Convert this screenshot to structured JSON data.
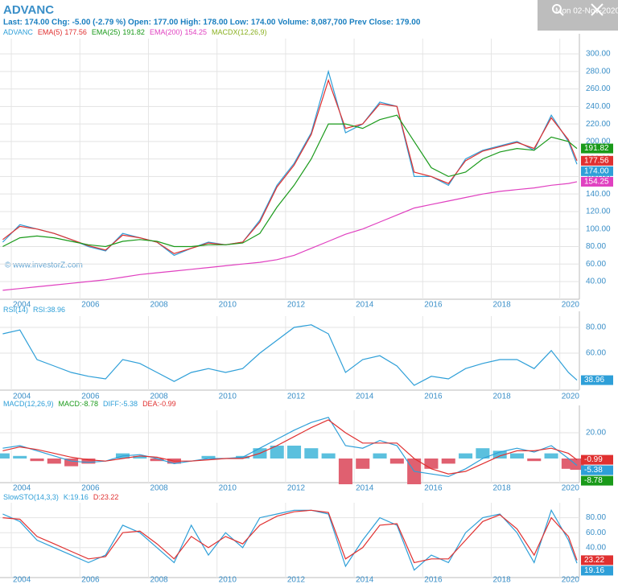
{
  "header": {
    "symbol": "ADVANC",
    "quote": "Last: 174.00 Chg: -5.00 (-2.79 %) Open: 177.00 High: 178.00 Low: 174.00 Volume: 8,087,700 Prev Close: 179.00",
    "date": "Mon 02-Nov-2020",
    "watermark": "© www.investorZ.com"
  },
  "chart_data": [
    {
      "type": "line",
      "indicator": "MACDX(12,26,9)",
      "x": [
        2003.75,
        2004.25,
        2004.75,
        2005.25,
        2005.75,
        2006.25,
        2006.75,
        2007.25,
        2007.75,
        2008.25,
        2008.75,
        2009.25,
        2009.75,
        2010.25,
        2010.75,
        2011.25,
        2011.75,
        2012.25,
        2012.75,
        2013.25,
        2013.75,
        2014.25,
        2014.75,
        2015.25,
        2015.75,
        2016.25,
        2016.75,
        2017.25,
        2017.75,
        2018.25,
        2018.75,
        2019.25,
        2019.75,
        2020.25,
        2020.5
      ],
      "series": [
        {
          "name": "ADVANC",
          "color": "#2e9fd8",
          "box": "174.00",
          "values": [
            85,
            105,
            100,
            95,
            88,
            80,
            75,
            95,
            90,
            85,
            70,
            78,
            85,
            82,
            85,
            110,
            150,
            175,
            210,
            280,
            210,
            220,
            245,
            240,
            160,
            160,
            150,
            180,
            190,
            195,
            200,
            190,
            230,
            200,
            174
          ]
        },
        {
          "name": "EMA(5)",
          "color": "#e03030",
          "last": "177.56",
          "values": [
            88,
            103,
            100,
            95,
            88,
            81,
            76,
            93,
            90,
            85,
            72,
            78,
            84,
            82,
            85,
            108,
            148,
            173,
            208,
            270,
            215,
            220,
            243,
            240,
            165,
            160,
            152,
            178,
            189,
            194,
            199,
            192,
            227,
            202,
            178
          ]
        },
        {
          "name": "EMA(25)",
          "color": "#1a9a1a",
          "last": "191.82",
          "values": [
            80,
            90,
            92,
            90,
            86,
            82,
            80,
            86,
            88,
            86,
            80,
            80,
            82,
            82,
            84,
            95,
            125,
            150,
            180,
            220,
            220,
            215,
            225,
            230,
            200,
            170,
            160,
            165,
            180,
            188,
            192,
            190,
            205,
            200,
            192
          ]
        },
        {
          "name": "EMA(200)",
          "color": "#e040c0",
          "last": "154.25",
          "values": [
            30,
            32,
            34,
            36,
            38,
            40,
            42,
            45,
            48,
            50,
            52,
            54,
            56,
            58,
            60,
            62,
            65,
            70,
            78,
            86,
            94,
            100,
            108,
            116,
            124,
            128,
            132,
            136,
            140,
            143,
            145,
            147,
            150,
            152,
            154
          ]
        }
      ],
      "xlim": [
        2003.67,
        2020.57
      ],
      "xticks": [
        2004,
        2006,
        2008,
        2010,
        2012,
        2014,
        2016,
        2018,
        2020
      ],
      "ylim": [
        19.8,
        317.5
      ],
      "yticks": [
        {
          "value": 40,
          "label": "40.00"
        },
        {
          "value": 60,
          "label": "60.00"
        },
        {
          "value": 80,
          "label": "80.00"
        },
        {
          "value": 100,
          "label": "100.00"
        },
        {
          "value": 120,
          "label": "120.00"
        },
        {
          "value": 140,
          "label": "140.00"
        },
        {
          "value": 160,
          "label": "160.00"
        },
        {
          "value": 180,
          "label": "180.00"
        },
        {
          "value": 200,
          "label": "200.00"
        },
        {
          "value": 220,
          "label": "220.00"
        },
        {
          "value": 240,
          "label": "240.00"
        },
        {
          "value": 260,
          "label": "260.00"
        },
        {
          "value": 280,
          "label": "280.00"
        },
        {
          "value": 300,
          "label": "300.00"
        }
      ],
      "grid": true
    },
    {
      "type": "line",
      "title": "RSI(14)",
      "x": [
        2003.75,
        2004.25,
        2004.75,
        2005.25,
        2005.75,
        2006.25,
        2006.75,
        2007.25,
        2007.75,
        2008.25,
        2008.75,
        2009.25,
        2009.75,
        2010.25,
        2010.75,
        2011.25,
        2011.75,
        2012.25,
        2012.75,
        2013.25,
        2013.75,
        2014.25,
        2014.75,
        2015.25,
        2015.75,
        2016.25,
        2016.75,
        2017.25,
        2017.75,
        2018.25,
        2018.75,
        2019.25,
        2019.75,
        2020.25,
        2020.5
      ],
      "series": [
        {
          "name": "RSI",
          "legend": "RSI:38.96",
          "box": "38.96",
          "color": "#2e9fd8",
          "values": [
            75,
            78,
            55,
            50,
            45,
            42,
            40,
            55,
            52,
            45,
            38,
            45,
            48,
            45,
            48,
            60,
            70,
            80,
            82,
            75,
            45,
            55,
            58,
            50,
            35,
            42,
            40,
            48,
            52,
            55,
            55,
            48,
            62,
            45,
            39
          ]
        }
      ],
      "xlim": [
        2003.67,
        2020.57
      ],
      "xticks": [
        2004,
        2006,
        2008,
        2010,
        2012,
        2014,
        2016,
        2018,
        2020
      ],
      "ylim": [
        31.25,
        88.75
      ],
      "yticks": [
        {
          "value": 60,
          "label": "60.00"
        },
        {
          "value": 80,
          "label": "80.00"
        }
      ],
      "grid": true
    },
    {
      "type": "line",
      "title": "MACD(12,26,9)",
      "x": [
        2003.75,
        2004.25,
        2004.75,
        2005.25,
        2005.75,
        2006.25,
        2006.75,
        2007.25,
        2007.75,
        2008.25,
        2008.75,
        2009.25,
        2009.75,
        2010.25,
        2010.75,
        2011.25,
        2011.75,
        2012.25,
        2012.75,
        2013.25,
        2013.75,
        2014.25,
        2014.75,
        2015.25,
        2015.75,
        2016.25,
        2016.75,
        2017.25,
        2017.75,
        2018.25,
        2018.75,
        2019.25,
        2019.75,
        2020.25,
        2020.5
      ],
      "series": [
        {
          "name": "MACD",
          "style": "bar",
          "legend": "MACD:-8.78",
          "box": "-8.78",
          "color": "#5bc0de",
          "negative_color": "#e06070",
          "box_color": "#1a9a1a",
          "values": [
            4,
            2,
            -2,
            -4,
            -6,
            -4,
            0,
            4,
            2,
            -2,
            -4,
            0,
            2,
            0,
            2,
            8,
            10,
            10,
            8,
            4,
            -20,
            -8,
            4,
            -4,
            -20,
            -8,
            -4,
            4,
            8,
            6,
            4,
            -2,
            4,
            -8,
            -8.78
          ]
        },
        {
          "name": "DIFF",
          "legend": "DIFF:-5.38",
          "box": "-5.38",
          "color": "#2e9fd8",
          "values": [
            8,
            10,
            6,
            2,
            -2,
            -3,
            -2,
            2,
            3,
            0,
            -4,
            -2,
            0,
            0,
            1,
            8,
            15,
            22,
            28,
            32,
            10,
            8,
            14,
            10,
            -10,
            -12,
            -14,
            -8,
            0,
            5,
            8,
            5,
            10,
            0,
            -5.38
          ]
        },
        {
          "name": "DEA",
          "legend": "DEA:-0.99",
          "box": "-0.99",
          "color": "#e03030",
          "values": [
            6,
            9,
            7,
            4,
            1,
            -1,
            -2,
            0,
            2,
            1,
            -2,
            -2,
            -1,
            0,
            0,
            4,
            10,
            17,
            24,
            30,
            20,
            12,
            12,
            12,
            0,
            -8,
            -12,
            -10,
            -4,
            2,
            6,
            6,
            8,
            4,
            -0.99
          ]
        }
      ],
      "xlim": [
        2003.67,
        2020.57
      ],
      "xticks": [
        2004,
        2006,
        2008,
        2010,
        2012,
        2014,
        2016,
        2018,
        2020
      ],
      "ylim": [
        -18.75,
        37.5
      ],
      "yticks": [
        {
          "value": 20,
          "label": "20.00"
        }
      ],
      "grid": true
    },
    {
      "type": "line",
      "title": "SlowSTO(14,3,3)",
      "x": [
        2003.75,
        2004.25,
        2004.75,
        2005.25,
        2005.75,
        2006.25,
        2006.75,
        2007.25,
        2007.75,
        2008.25,
        2008.75,
        2009.25,
        2009.75,
        2010.25,
        2010.75,
        2011.25,
        2011.75,
        2012.25,
        2012.75,
        2013.25,
        2013.75,
        2014.25,
        2014.75,
        2015.25,
        2015.75,
        2016.25,
        2016.75,
        2017.25,
        2017.75,
        2018.25,
        2018.75,
        2019.25,
        2019.75,
        2020.25,
        2020.5
      ],
      "series": [
        {
          "name": "K",
          "legend": "K:19.16",
          "box": "19.16",
          "color": "#2e9fd8",
          "values": [
            85,
            75,
            50,
            40,
            30,
            20,
            30,
            70,
            60,
            40,
            20,
            70,
            30,
            60,
            40,
            80,
            85,
            90,
            90,
            85,
            15,
            50,
            80,
            70,
            10,
            30,
            20,
            60,
            80,
            85,
            60,
            20,
            90,
            50,
            19.16
          ]
        },
        {
          "name": "D",
          "legend": "D:23.22",
          "box": "23.22",
          "color": "#e03030",
          "values": [
            80,
            78,
            55,
            45,
            35,
            25,
            28,
            60,
            62,
            45,
            25,
            55,
            40,
            55,
            45,
            70,
            82,
            88,
            90,
            87,
            25,
            40,
            70,
            72,
            20,
            25,
            25,
            50,
            75,
            84,
            65,
            30,
            80,
            55,
            23.22
          ]
        }
      ],
      "xlim": [
        2003.67,
        2020.57
      ],
      "xticks": [
        2004,
        2006,
        2008,
        2010,
        2012,
        2014,
        2016,
        2018,
        2020
      ],
      "ylim": [
        0,
        100
      ],
      "yticks": [
        {
          "value": 40,
          "label": "40.00"
        },
        {
          "value": 60,
          "label": "60.00"
        },
        {
          "value": 80,
          "label": "80.00"
        }
      ],
      "grid": true
    }
  ]
}
